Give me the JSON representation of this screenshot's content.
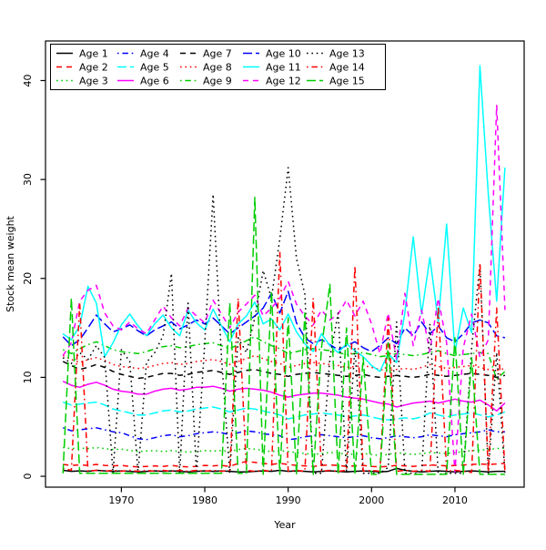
{
  "chart_data": {
    "type": "line",
    "title": "",
    "xlabel": "Year",
    "ylabel": "Stock mean weight",
    "x_ticks": [
      1970,
      1980,
      1990,
      2000,
      2010
    ],
    "y_ticks": [
      0,
      10,
      20,
      30,
      40
    ],
    "xlim": [
      1960.9,
      2018.3
    ],
    "ylim": [
      -1.1,
      44.0
    ],
    "grid": false,
    "legend_position": "top-left",
    "background": "#ffffff",
    "axis_color": "#000000",
    "x": [
      1963,
      1964,
      1965,
      1966,
      1967,
      1968,
      1969,
      1970,
      1971,
      1972,
      1973,
      1974,
      1975,
      1976,
      1977,
      1978,
      1979,
      1980,
      1981,
      1982,
      1983,
      1984,
      1985,
      1986,
      1987,
      1988,
      1989,
      1990,
      1991,
      1992,
      1993,
      1994,
      1995,
      1996,
      1997,
      1998,
      1999,
      2000,
      2001,
      2002,
      2003,
      2004,
      2005,
      2006,
      2007,
      2008,
      2009,
      2010,
      2011,
      2012,
      2013,
      2014,
      2015,
      2016
    ],
    "series": [
      {
        "name": "Age 1",
        "color": "#000000",
        "linetype": "solid",
        "values": [
          0.6,
          0.5,
          0.55,
          0.5,
          0.6,
          0.55,
          0.5,
          0.55,
          0.5,
          0.45,
          0.5,
          0.55,
          0.5,
          0.55,
          0.5,
          0.45,
          0.5,
          0.55,
          0.5,
          0.55,
          0.5,
          0.45,
          0.45,
          0.5,
          0.55,
          0.5,
          0.6,
          0.5,
          0.55,
          0.5,
          0.45,
          0.5,
          0.55,
          0.5,
          0.45,
          0.5,
          0.55,
          0.5,
          0.45,
          0.5,
          0.8,
          0.6,
          0.5,
          0.45,
          0.5,
          0.55,
          0.5,
          0.45,
          0.5,
          0.55,
          0.5,
          0.45,
          0.5,
          0.5
        ]
      },
      {
        "name": "Age 2",
        "color": "#ff0000",
        "linetype": "dashed",
        "values": [
          1.2,
          1.1,
          1.15,
          1.1,
          1.2,
          1.1,
          1.05,
          1.1,
          1.0,
          0.95,
          1.0,
          1.05,
          1.0,
          1.1,
          1.0,
          0.95,
          1.0,
          1.1,
          1.05,
          1.1,
          1.0,
          1.3,
          1.5,
          1.4,
          1.3,
          1.2,
          1.3,
          1.2,
          1.1,
          1.05,
          1.0,
          1.1,
          1.15,
          1.1,
          1.0,
          1.05,
          1.1,
          1.0,
          0.95,
          1.0,
          1.1,
          1.05,
          1.0,
          1.1,
          1.15,
          1.1,
          1.05,
          1.1,
          1.15,
          1.2,
          1.25,
          1.2,
          1.25,
          1.3
        ]
      },
      {
        "name": "Age 3",
        "color": "#00cd00",
        "linetype": "dotted",
        "values": [
          2.9,
          2.8,
          2.85,
          2.8,
          2.9,
          2.8,
          2.7,
          2.75,
          2.6,
          2.5,
          2.55,
          2.6,
          2.5,
          2.6,
          2.5,
          2.45,
          2.5,
          2.6,
          2.55,
          2.6,
          2.5,
          2.7,
          2.8,
          2.75,
          2.6,
          2.5,
          2.6,
          2.5,
          2.4,
          2.3,
          2.2,
          2.3,
          2.4,
          2.35,
          2.2,
          2.25,
          2.3,
          2.2,
          2.1,
          2.2,
          2.4,
          2.3,
          2.2,
          2.3,
          2.4,
          2.35,
          2.3,
          2.4,
          2.5,
          2.6,
          2.65,
          2.7,
          2.8,
          2.85
        ]
      },
      {
        "name": "Age 4",
        "color": "#0000ff",
        "linetype": "dotdash",
        "values": [
          4.9,
          4.6,
          4.7,
          4.8,
          4.9,
          4.7,
          4.5,
          4.4,
          4.1,
          3.8,
          3.7,
          3.9,
          4.1,
          4.2,
          4.0,
          4.1,
          4.3,
          4.4,
          4.5,
          4.4,
          4.2,
          4.4,
          4.6,
          4.5,
          4.3,
          4.2,
          4.1,
          3.7,
          3.8,
          4.0,
          4.1,
          4.2,
          4.1,
          4.0,
          3.9,
          4.0,
          4.1,
          3.9,
          3.8,
          3.9,
          4.1,
          4.0,
          3.9,
          4.0,
          4.2,
          4.1,
          4.0,
          4.2,
          4.3,
          4.4,
          4.5,
          4.7,
          4.5,
          4.5
        ]
      },
      {
        "name": "Age 5",
        "color": "#00ffff",
        "linetype": "longdash",
        "values": [
          7.5,
          7.2,
          7.3,
          7.4,
          7.5,
          7.2,
          6.8,
          6.6,
          6.4,
          6.2,
          6.2,
          6.4,
          6.6,
          6.7,
          6.5,
          6.6,
          6.8,
          6.9,
          7.0,
          6.8,
          6.5,
          6.7,
          6.9,
          6.8,
          6.6,
          6.4,
          6.2,
          5.8,
          6.0,
          6.2,
          6.3,
          6.4,
          6.3,
          6.2,
          6.0,
          6.1,
          6.2,
          6.0,
          5.8,
          5.7,
          5.8,
          5.9,
          5.8,
          6.0,
          6.4,
          6.2,
          6.0,
          6.2,
          6.3,
          6.4,
          6.2,
          6.0,
          6.2,
          6.5
        ]
      },
      {
        "name": "Age 6",
        "color": "#ff00ff",
        "linetype": "solid",
        "values": [
          9.6,
          9.2,
          9.0,
          9.3,
          9.5,
          9.2,
          8.8,
          8.6,
          8.5,
          8.3,
          8.3,
          8.6,
          8.8,
          8.9,
          8.7,
          8.8,
          9.0,
          9.0,
          9.1,
          8.9,
          8.6,
          8.8,
          8.9,
          8.8,
          8.7,
          8.5,
          8.2,
          8.0,
          8.2,
          8.3,
          8.4,
          8.4,
          8.3,
          8.2,
          8.0,
          7.9,
          7.8,
          7.6,
          7.4,
          7.3,
          7.0,
          7.2,
          7.4,
          7.5,
          7.6,
          7.4,
          7.6,
          7.8,
          7.6,
          7.5,
          7.7,
          7.2,
          6.6,
          7.4
        ]
      },
      {
        "name": "Age 7",
        "color": "#000000",
        "linetype": "dashed",
        "values": [
          11.6,
          11.2,
          10.8,
          11.0,
          11.3,
          11.0,
          10.6,
          10.3,
          10.1,
          9.9,
          10.0,
          10.2,
          10.4,
          10.4,
          10.2,
          10.3,
          10.5,
          10.6,
          10.7,
          10.5,
          10.3,
          10.5,
          10.7,
          10.8,
          10.6,
          10.4,
          10.3,
          10.1,
          10.3,
          10.4,
          10.5,
          10.4,
          10.3,
          10.2,
          10.1,
          10.2,
          10.3,
          10.1,
          10.0,
          10.1,
          10.2,
          10.1,
          10.0,
          10.1,
          10.3,
          10.2,
          10.1,
          10.2,
          10.3,
          10.4,
          10.3,
          10.2,
          10.0,
          10.2
        ]
      },
      {
        "name": "Age 8",
        "color": "#ff0000",
        "linetype": "dotted",
        "values": [
          12.2,
          11.8,
          11.5,
          11.8,
          12.0,
          11.7,
          11.3,
          11.1,
          11.0,
          10.9,
          11.0,
          11.2,
          11.4,
          11.5,
          11.3,
          11.4,
          11.6,
          11.7,
          11.8,
          11.6,
          11.3,
          11.6,
          11.9,
          12.2,
          11.9,
          11.6,
          11.4,
          11.0,
          11.2,
          11.4,
          11.5,
          11.4,
          11.3,
          11.2,
          11.0,
          11.1,
          11.2,
          11.0,
          10.8,
          10.7,
          10.8,
          10.9,
          10.8,
          11.0,
          11.3,
          11.1,
          10.9,
          11.0,
          11.1,
          11.2,
          11.0,
          10.8,
          10.7,
          10.9
        ]
      },
      {
        "name": "Age 9",
        "color": "#00cd00",
        "linetype": "dotdash",
        "values": [
          12.8,
          12.4,
          12.9,
          13.3,
          13.6,
          13.2,
          12.8,
          12.6,
          12.5,
          12.4,
          12.6,
          12.9,
          13.1,
          13.2,
          13.0,
          13.1,
          13.3,
          13.4,
          13.5,
          13.2,
          12.9,
          13.3,
          13.7,
          14.1,
          13.6,
          13.2,
          12.9,
          12.4,
          12.6,
          12.8,
          12.9,
          12.8,
          12.7,
          12.5,
          12.3,
          12.4,
          12.5,
          12.3,
          12.1,
          12.2,
          12.4,
          12.3,
          12.2,
          12.3,
          12.5,
          12.7,
          12.4,
          12.2,
          12.3,
          12.4,
          12.5,
          12.4,
          9.8,
          10.6
        ]
      },
      {
        "name": "Age 10",
        "color": "#0000ff",
        "linetype": "longdash",
        "values": [
          14.1,
          13.2,
          13.8,
          15.0,
          16.3,
          15.4,
          14.6,
          14.9,
          15.3,
          14.7,
          14.2,
          14.8,
          15.2,
          15.6,
          14.9,
          15.3,
          15.8,
          15.4,
          16.0,
          15.2,
          14.4,
          15.0,
          15.6,
          16.2,
          17.0,
          18.5,
          16.5,
          18.7,
          15.5,
          14.0,
          13.4,
          13.8,
          13.3,
          12.8,
          13.2,
          13.6,
          13.0,
          12.6,
          13.2,
          14.0,
          13.4,
          15.0,
          14.2,
          15.6,
          14.4,
          15.2,
          14.0,
          13.6,
          14.4,
          15.5,
          15.8,
          15.5,
          14.2,
          14.0
        ]
      },
      {
        "name": "Age 11",
        "color": "#00ffff",
        "linetype": "solid",
        "values": [
          14.4,
          13.8,
          15.2,
          19.2,
          17.5,
          12.1,
          13.5,
          15.3,
          16.4,
          15.2,
          14.2,
          15.4,
          16.3,
          15.0,
          14.2,
          16.8,
          15.5,
          14.8,
          16.9,
          15.2,
          13.6,
          15.4,
          16.2,
          17.6,
          15.4,
          15.9,
          14.8,
          16.4,
          14.6,
          13.4,
          12.6,
          14.4,
          13.2,
          12.5,
          13.4,
          12.7,
          12.1,
          11.2,
          10.6,
          12.4,
          11.5,
          16.6,
          24.2,
          16.4,
          22.1,
          15.6,
          25.5,
          12.5,
          17.0,
          14.5,
          41.5,
          28.5,
          17.7,
          31.2
        ]
      },
      {
        "name": "Age 12",
        "color": "#ff00ff",
        "linetype": "dashed",
        "values": [
          12.2,
          13.5,
          17.7,
          18.8,
          19.3,
          16.5,
          15.2,
          14.8,
          15.6,
          14.9,
          14.4,
          15.8,
          17.2,
          16.0,
          15.2,
          17.0,
          16.2,
          15.5,
          17.8,
          16.4,
          15.0,
          16.6,
          17.4,
          18.3,
          16.2,
          17.0,
          18.0,
          19.7,
          17.4,
          16.2,
          15.3,
          16.8,
          15.8,
          16.4,
          17.8,
          16.2,
          17.7,
          15.4,
          12.4,
          16.5,
          11.8,
          18.5,
          13.2,
          16.8,
          12.6,
          18.0,
          13.5,
          0.4,
          13.0,
          16.4,
          12.0,
          13.8,
          37.5,
          16.8
        ]
      },
      {
        "name": "Age 13",
        "color": "#000000",
        "linetype": "dotted",
        "values": [
          12.0,
          11.4,
          12.5,
          11.8,
          13.2,
          12.0,
          0.3,
          12.8,
          11.6,
          0.3,
          11.5,
          12.5,
          14.2,
          20.5,
          0.3,
          17.5,
          0.3,
          13.5,
          28.5,
          12.0,
          0.3,
          14.0,
          12.5,
          16.0,
          20.8,
          18.0,
          24.0,
          31.2,
          22.0,
          18.4,
          0.3,
          0.3,
          12.0,
          16.5,
          0.3,
          13.0,
          0.3,
          0.3,
          0.3,
          0.9,
          15.6,
          0.3,
          0.3,
          0.2,
          15.4,
          0.2,
          0.3,
          0.3,
          0.3,
          13.0,
          21.5,
          0.3,
          12.5,
          0.3
        ]
      },
      {
        "name": "Age 14",
        "color": "#ff0000",
        "linetype": "dotdash",
        "values": [
          0.8,
          0.6,
          17.5,
          0.5,
          0.6,
          0.5,
          0.6,
          0.5,
          0.6,
          0.5,
          0.6,
          0.5,
          0.6,
          0.5,
          0.6,
          0.5,
          0.6,
          0.5,
          0.6,
          0.5,
          0.6,
          18.0,
          0.6,
          0.5,
          0.6,
          0.5,
          22.7,
          0.5,
          0.6,
          0.5,
          18.0,
          0.5,
          0.6,
          0.5,
          0.6,
          21.3,
          0.5,
          0.6,
          0.5,
          16.0,
          0.5,
          0.6,
          0.5,
          0.6,
          0.5,
          17.2,
          0.5,
          0.6,
          0.5,
          0.4,
          21.6,
          0.4,
          17.0,
          0.5
        ]
      },
      {
        "name": "Age 15",
        "color": "#00cd00",
        "linetype": "longdash",
        "values": [
          0.3,
          18.0,
          0.3,
          0.3,
          0.3,
          0.3,
          0.3,
          0.3,
          0.3,
          0.3,
          0.3,
          0.3,
          0.3,
          0.3,
          0.3,
          0.3,
          0.3,
          0.3,
          0.3,
          0.3,
          17.5,
          0.3,
          0.3,
          28.2,
          0.2,
          18.7,
          0.2,
          16.0,
          0.2,
          16.5,
          0.2,
          13.0,
          19.4,
          0.2,
          15.0,
          0.2,
          12.0,
          0.2,
          0.2,
          13.5,
          0.2,
          0.2,
          0.2,
          0.2,
          0.2,
          0.2,
          0.2,
          14.0,
          0.2,
          12.0,
          0.2,
          0.2,
          0.2,
          0.2
        ]
      }
    ]
  }
}
